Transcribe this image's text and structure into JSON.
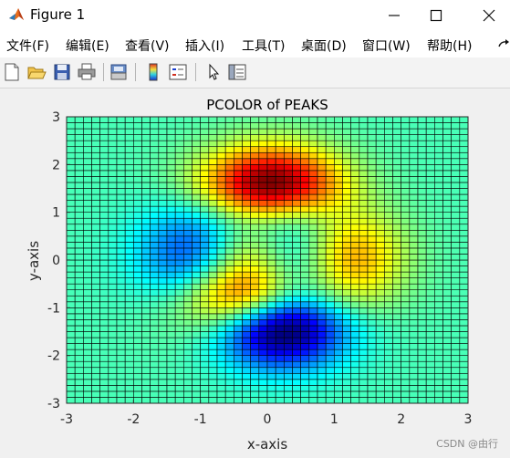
{
  "window": {
    "title": "Figure 1",
    "controls": {
      "minimize": "—",
      "maximize": "☐",
      "close": "✕"
    }
  },
  "menu": {
    "items": [
      "文件(F)",
      "编辑(E)",
      "查看(V)",
      "插入(I)",
      "工具(T)",
      "桌面(D)",
      "窗口(W)",
      "帮助(H)"
    ],
    "overflow_icon": "dock-arrow-icon"
  },
  "toolbar": {
    "buttons": [
      "new-figure-icon",
      "open-file-icon",
      "save-icon",
      "print-icon",
      "print-preview-icon",
      "colorbar-icon",
      "legend-icon",
      "pointer-icon",
      "property-inspector-icon"
    ]
  },
  "chart_data": {
    "type": "heatmap",
    "title": "PCOLOR of PEAKS",
    "xlabel": "x-axis",
    "ylabel": "y-axis",
    "xlim": [
      -3,
      3
    ],
    "ylim": [
      -3,
      3
    ],
    "xticks": [
      "-3",
      "-2",
      "-1",
      "0",
      "1",
      "2",
      "3"
    ],
    "yticks": [
      "-3",
      "-2",
      "-1",
      "0",
      "1",
      "2",
      "3"
    ],
    "grid_size": [
      49,
      49
    ],
    "function": "peaks(x, y)",
    "colormap": "jet",
    "clim": [
      -6.5,
      8.1
    ],
    "edge_color": "#000000"
  },
  "watermark": "CSDN @由行"
}
